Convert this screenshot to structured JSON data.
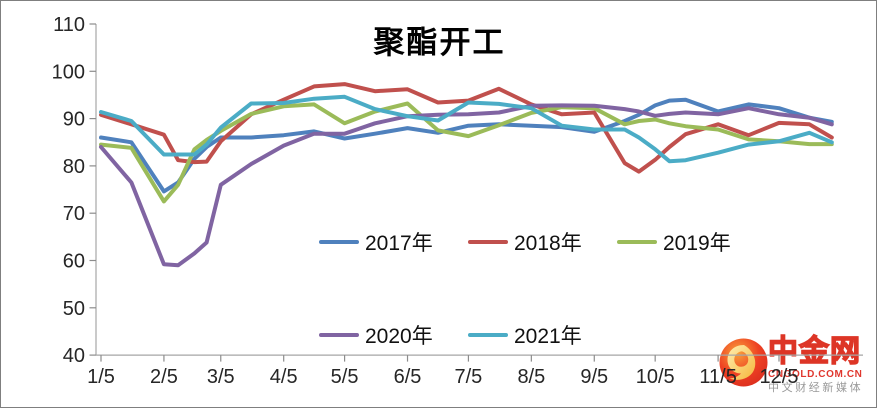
{
  "chart_data": {
    "type": "line",
    "title": "聚酯开工",
    "ylim": [
      40,
      110
    ],
    "y_ticks": [
      40,
      50,
      60,
      70,
      80,
      90,
      100,
      110
    ],
    "x_tick_labels": [
      "1/5",
      "2/5",
      "3/5",
      "4/5",
      "5/5",
      "6/5",
      "7/5",
      "8/5",
      "9/5",
      "10/5",
      "11/5",
      "12/5"
    ],
    "x_tick_days": [
      5,
      36,
      64,
      95,
      125,
      156,
      186,
      217,
      248,
      278,
      309,
      339
    ],
    "x_point_labels": [
      "1/5",
      "1/20",
      "2/5",
      "2/12",
      "2/20",
      "2/26",
      "3/5",
      "3/20",
      "4/5",
      "4/20",
      "5/5",
      "5/20",
      "6/5",
      "6/20",
      "7/5",
      "7/20",
      "8/5",
      "8/20",
      "9/5",
      "9/20",
      "9/27",
      "10/5",
      "10/12",
      "10/20",
      "11/5",
      "11/20",
      "12/5",
      "12/20",
      "12/31"
    ],
    "x_days": [
      5,
      20,
      36,
      43,
      51,
      57,
      64,
      79,
      95,
      110,
      125,
      140,
      156,
      171,
      186,
      201,
      217,
      232,
      248,
      263,
      270,
      278,
      285,
      293,
      309,
      324,
      339,
      354,
      365
    ],
    "grid": "off",
    "legend_position": "bottom-center-two-rows",
    "series": [
      {
        "name": "2017年",
        "color": "#4F81BD",
        "values": [
          86,
          85,
          74.6,
          76.5,
          81.5,
          84,
          86,
          86,
          86.5,
          87.3,
          85.8,
          86.8,
          88,
          87,
          88.5,
          88.8,
          88.5,
          88.2,
          87.2,
          89.5,
          90.8,
          92.8,
          93.8,
          94,
          91.5,
          93,
          92.2,
          90.2,
          89.3
        ]
      },
      {
        "name": "2018年",
        "color": "#C0504D",
        "values": [
          90.8,
          88.8,
          86.6,
          81.2,
          80.8,
          80.9,
          85.2,
          90.9,
          94,
          96.8,
          97.3,
          95.8,
          96.2,
          93.4,
          93.8,
          96.3,
          93,
          90.9,
          91.3,
          80.6,
          78.8,
          81.3,
          84,
          86.7,
          88.8,
          86.5,
          89.1,
          88.8,
          86
        ]
      },
      {
        "name": "2019年",
        "color": "#9BBB59",
        "values": [
          84.5,
          83.8,
          72.5,
          76,
          83.5,
          85.5,
          87.4,
          91,
          92.6,
          93,
          89,
          91.5,
          93.2,
          87.5,
          86.3,
          88.6,
          91.2,
          92.4,
          92.2,
          88.8,
          89.5,
          89.8,
          89,
          88.4,
          87.7,
          85.6,
          85.2,
          84.6,
          84.6
        ]
      },
      {
        "name": "2020年",
        "color": "#8064A2",
        "values": [
          84,
          76.5,
          59.2,
          59,
          61.5,
          63.8,
          76,
          80.4,
          84.3,
          86.8,
          86.8,
          89,
          90.5,
          90.8,
          90.9,
          91.3,
          92.7,
          92.8,
          92.7,
          92,
          91.5,
          90.6,
          91,
          91.3,
          90.9,
          92.2,
          90.9,
          90.2,
          88.8
        ]
      },
      {
        "name": "2021年",
        "color": "#4BACC6",
        "values": [
          91.4,
          89.5,
          82.4,
          82.4,
          82.4,
          84.5,
          88.1,
          93.2,
          93.3,
          94.2,
          94.6,
          92,
          90.5,
          89.6,
          93.4,
          93.1,
          92.2,
          88.5,
          87.7,
          87.7,
          86,
          83.5,
          81,
          81.2,
          82.8,
          84.5,
          85.2,
          87,
          85
        ]
      }
    ],
    "axis_color": "#a6a6a6",
    "tick_color": "#8c8c8c",
    "tick_label_color": "#262626"
  },
  "watermark": {
    "brand": "中金网",
    "domain": "CNGOLD.COM.CN",
    "tagline": "中文财经新媒体"
  }
}
